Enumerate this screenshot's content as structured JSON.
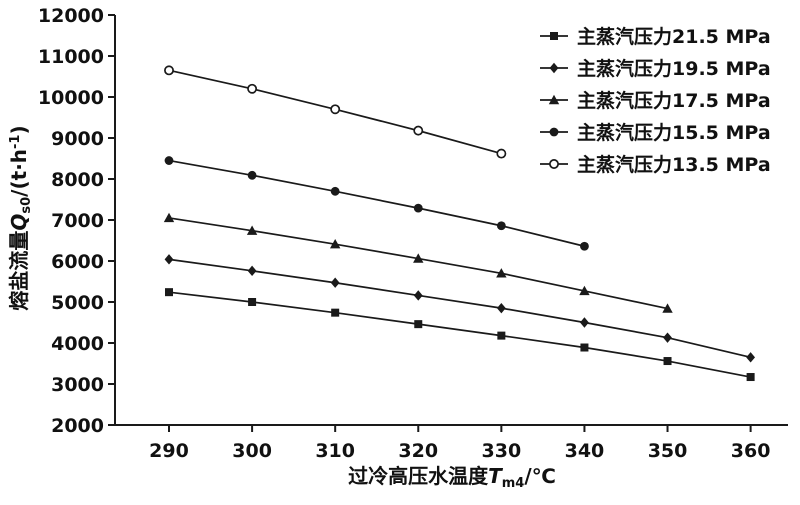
{
  "page": {
    "background": "#ffffff",
    "foreground": "#111111"
  },
  "chart_data": {
    "type": "line",
    "title": "",
    "xlabel": "过冷高压水温度Tm4/℃",
    "xlabel_parts": {
      "name": "过冷高压水温度",
      "var": "T",
      "sub": "m4",
      "unit": "/℃"
    },
    "ylabel": "熔盐流量Qs0/(t·h-1)",
    "ylabel_parts": {
      "name": "熔盐流量",
      "var": "Q",
      "sub": "s0",
      "unit_open": "/(t·h",
      "exp": "-1",
      "unit_close": ")"
    },
    "xlim": [
      283.5,
      364.5
    ],
    "ylim": [
      2000,
      12000
    ],
    "x_ticks": [
      290,
      300,
      310,
      320,
      330,
      340,
      350,
      360
    ],
    "y_ticks": [
      2000,
      3000,
      4000,
      5000,
      6000,
      7000,
      8000,
      9000,
      10000,
      11000,
      12000
    ],
    "grid": false,
    "legend_position": "top-right",
    "line_color": "#1a1a1a",
    "series": [
      {
        "name": "主蒸汽压力21.5 MPa",
        "marker": "square",
        "x": [
          290,
          300,
          310,
          320,
          330,
          340,
          350,
          360
        ],
        "values": [
          5240,
          5000,
          4740,
          4460,
          4180,
          3890,
          3560,
          3170
        ]
      },
      {
        "name": "主蒸汽压力19.5 MPa",
        "marker": "diamond",
        "x": [
          290,
          300,
          310,
          320,
          330,
          340,
          350,
          360
        ],
        "values": [
          6040,
          5760,
          5470,
          5160,
          4850,
          4500,
          4130,
          3650
        ]
      },
      {
        "name": "主蒸汽压力17.5 MPa",
        "marker": "triangle-up",
        "x": [
          290,
          300,
          310,
          320,
          330,
          340,
          350
        ],
        "values": [
          7050,
          6740,
          6410,
          6060,
          5700,
          5270,
          4840
        ]
      },
      {
        "name": "主蒸汽压力15.5 MPa",
        "marker": "circle",
        "x": [
          290,
          300,
          310,
          320,
          330,
          340
        ],
        "values": [
          8450,
          8090,
          7700,
          7290,
          6860,
          6360
        ]
      },
      {
        "name": "主蒸汽压力13.5 MPa",
        "marker": "circle-open",
        "x": [
          290,
          300,
          310,
          320,
          330
        ],
        "values": [
          10650,
          10200,
          9700,
          9180,
          8620
        ]
      }
    ]
  }
}
